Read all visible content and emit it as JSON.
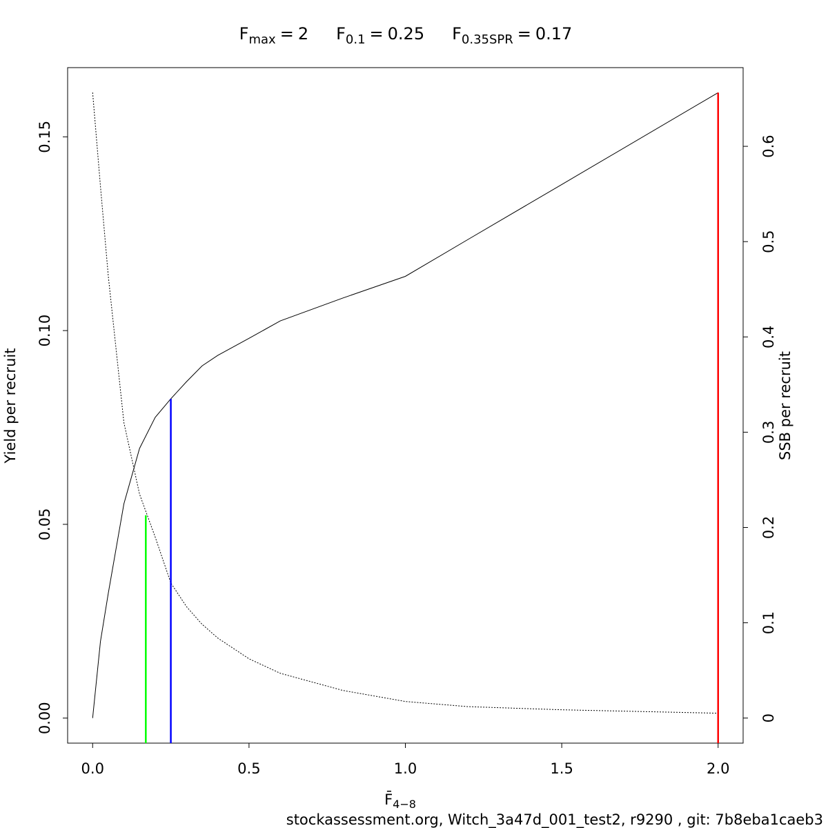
{
  "chart_data": {
    "type": "line",
    "title_parts": [
      {
        "base": "F",
        "sub": "max",
        "eq": "=",
        "value": 2
      },
      {
        "base": "F",
        "sub": "0.1",
        "eq": "=",
        "value": 0.25
      },
      {
        "base": "F",
        "sub": "0.35SPR",
        "eq": "=",
        "value": 0.17
      }
    ],
    "xlabel": {
      "base": "F̄",
      "sub": "4−8"
    },
    "ylabel": "Yield per recruit",
    "y2label": "SSB per recruit",
    "footer": "stockassessment.org, Witch_3a47d_001_test2, r9290 , git: 7b8eba1caeb3",
    "x": [
      0,
      0.025,
      0.05,
      0.1,
      0.15,
      0.2,
      0.25,
      0.3,
      0.35,
      0.4,
      0.5,
      0.6,
      0.8,
      1.0,
      1.2,
      1.5,
      2.0
    ],
    "series": [
      {
        "name": "Yield per recruit",
        "color": "#000000",
        "dash": false,
        "values": [
          0,
          0.0198,
          0.0322,
          0.0553,
          0.0696,
          0.0776,
          0.0824,
          0.0868,
          0.0909,
          0.0936,
          0.098,
          0.1025,
          0.1084,
          0.114,
          0.1235,
          0.1377,
          0.1614
        ]
      },
      {
        "name": "SSB per recruit",
        "color": "#000000",
        "dash": true,
        "axis": "y2",
        "values": [
          0.6565,
          0.558,
          0.464,
          0.31,
          0.235,
          0.19,
          0.1418,
          0.117,
          0.0984,
          0.084,
          0.0622,
          0.047,
          0.029,
          0.0174,
          0.012,
          0.0087,
          0.0051
        ]
      }
    ],
    "reference_lines": [
      {
        "x": 0.17,
        "y": 0.2128,
        "axis": "y2",
        "color": "#00ff00"
      },
      {
        "x": 0.25,
        "y": 0.0824,
        "color": "#0000ff"
      },
      {
        "x": 2,
        "y": 0.1614,
        "color": "#ff0000"
      }
    ],
    "xlim": [
      -0.08,
      2.08
    ],
    "xticks": [
      {
        "value": 0,
        "label": "0.0"
      },
      0.5,
      {
        "value": 1,
        "label": "1.0"
      },
      1.5,
      {
        "value": 2,
        "label": "2.0"
      }
    ],
    "ylim": [
      -0.00646,
      0.16786
    ],
    "yticks": [
      {
        "value": 0,
        "label": "0.00"
      },
      0.05,
      {
        "value": 0.1,
        "label": "0.10"
      },
      0.15
    ],
    "y2lim": [
      -0.0263,
      0.6826
    ],
    "y2ticks": [
      0,
      0.1,
      0.2,
      0.3,
      0.4,
      0.5,
      0.6
    ]
  }
}
